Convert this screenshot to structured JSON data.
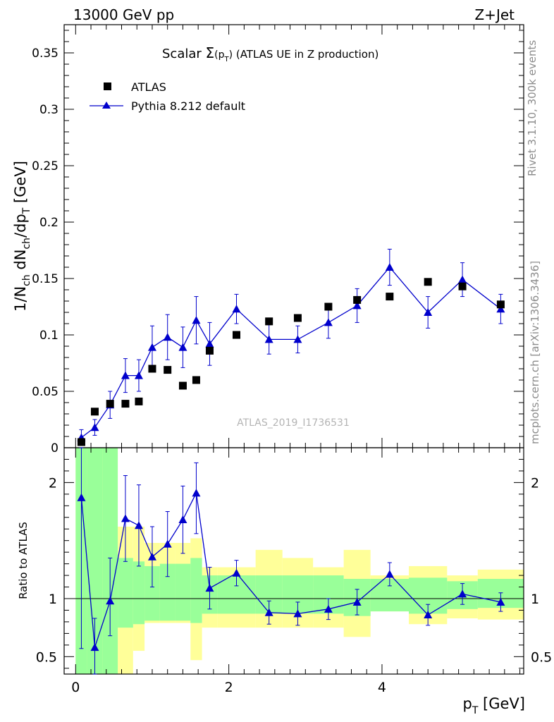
{
  "header": {
    "left": "13000 GeV pp",
    "right": "Z+Jet"
  },
  "side_texts": {
    "rivet": "Rivet 3.1.10,  300k events",
    "mcplots": "mcplots.cern.ch [arXiv:1306.3436]"
  },
  "watermark": "ATLAS_2019_I1736531",
  "colors": {
    "mc": "#0000cc",
    "data": "#000000",
    "band_inner": "#99ff99",
    "band_outer": "#ffff99"
  },
  "chart_data": [
    {
      "type": "scatter",
      "panel": "main",
      "title_prefix": "Scalar ",
      "title_sigma": "Σ",
      "title_p": "(p",
      "title_sub": "T",
      "title_close": ")",
      "title_suffix": " (ATLAS UE in Z production)",
      "ylabel": "1/N_ch dN_ch/dp_T [GeV]",
      "ylim": [
        0,
        0.375
      ],
      "yticks": [
        "0",
        "0.05",
        "0.1",
        "0.15",
        "0.2",
        "0.25",
        "0.3",
        "0.35"
      ],
      "ytick_values": [
        0,
        0.05,
        0.1,
        0.15,
        0.2,
        0.25,
        0.3,
        0.35
      ],
      "xlim": [
        -0.15,
        5.85
      ],
      "legend": {
        "data_label": "ATLAS",
        "mc_label": "Pythia 8.212 default",
        "placement": "top-left"
      },
      "x": [
        0.075,
        0.25,
        0.45,
        0.65,
        0.825,
        1.0,
        1.2,
        1.4,
        1.575,
        1.75,
        2.1,
        2.525,
        2.9,
        3.3,
        3.675,
        4.1,
        4.6,
        5.05,
        5.55
      ],
      "series": [
        {
          "name": "ATLAS",
          "values": [
            0.005,
            0.032,
            0.039,
            0.039,
            0.041,
            0.07,
            0.069,
            0.055,
            0.06,
            0.086,
            0.1,
            0.112,
            0.115,
            0.125,
            0.131,
            0.134,
            0.147,
            0.143,
            0.127
          ]
        },
        {
          "name": "Pythia 8.212 default",
          "values": [
            0.009,
            0.018,
            0.038,
            0.064,
            0.064,
            0.089,
            0.098,
            0.089,
            0.113,
            0.092,
            0.123,
            0.096,
            0.096,
            0.111,
            0.126,
            0.16,
            0.12,
            0.149,
            0.123
          ],
          "errors": [
            0.007,
            0.007,
            0.012,
            0.015,
            0.014,
            0.019,
            0.02,
            0.018,
            0.021,
            0.019,
            0.013,
            0.013,
            0.012,
            0.014,
            0.015,
            0.016,
            0.014,
            0.015,
            0.013
          ]
        }
      ]
    },
    {
      "type": "scatter",
      "panel": "ratio",
      "ylabel": "Ratio to ATLAS",
      "xlabel": "p_T [GeV]",
      "ylim": [
        0.35,
        2.3
      ],
      "yticks": [
        "0.5",
        "1",
        "2"
      ],
      "ytick_values": [
        0.5,
        1,
        2
      ],
      "xlim": [
        -0.15,
        5.85
      ],
      "xticks": [
        "0",
        "2",
        "4"
      ],
      "xtick_values": [
        0,
        2,
        4
      ],
      "bin_edges": [
        0.0,
        0.15,
        0.35,
        0.55,
        0.75,
        0.9,
        1.1,
        1.3,
        1.5,
        1.65,
        1.85,
        2.35,
        2.7,
        3.1,
        3.5,
        3.85,
        4.35,
        4.85,
        5.25,
        5.85
      ],
      "band_inner": {
        "lo": [
          0.35,
          0.35,
          0.35,
          0.75,
          0.78,
          0.81,
          0.81,
          0.81,
          0.79,
          0.87,
          0.87,
          0.87,
          0.87,
          0.87,
          0.85,
          0.89,
          0.87,
          0.91,
          0.92
        ],
        "hi": [
          2.3,
          2.3,
          2.3,
          1.35,
          1.32,
          1.28,
          1.3,
          1.3,
          1.35,
          1.2,
          1.2,
          1.2,
          1.2,
          1.2,
          1.17,
          1.17,
          1.18,
          1.15,
          1.17
        ]
      },
      "band_outer": {
        "lo": [
          0.35,
          0.35,
          0.35,
          0.35,
          0.55,
          0.79,
          0.79,
          0.79,
          0.47,
          0.75,
          0.75,
          0.75,
          0.75,
          0.75,
          0.67,
          0.89,
          0.78,
          0.83,
          0.82
        ],
        "hi": [
          2.3,
          2.3,
          2.3,
          1.62,
          1.62,
          1.48,
          1.48,
          1.48,
          1.52,
          1.27,
          1.27,
          1.42,
          1.35,
          1.27,
          1.42,
          1.2,
          1.28,
          1.2,
          1.25
        ]
      },
      "x": [
        0.075,
        0.25,
        0.45,
        0.65,
        0.825,
        1.0,
        1.2,
        1.4,
        1.575,
        1.75,
        2.1,
        2.525,
        2.9,
        3.3,
        3.675,
        4.1,
        4.6,
        5.05,
        5.55
      ],
      "series": [
        {
          "name": "Pythia 8.212 default / ATLAS",
          "values": [
            1.87,
            0.58,
            0.98,
            1.69,
            1.63,
            1.36,
            1.47,
            1.68,
            1.91,
            1.09,
            1.22,
            0.88,
            0.87,
            0.91,
            0.97,
            1.21,
            0.86,
            1.04,
            0.97
          ],
          "err_lo": [
            1.3,
            0.25,
            0.3,
            0.37,
            0.35,
            0.26,
            0.28,
            0.29,
            0.35,
            0.18,
            0.11,
            0.1,
            0.1,
            0.09,
            0.11,
            0.1,
            0.09,
            0.09,
            0.08
          ],
          "err_hi": [
            1.3,
            0.25,
            0.37,
            0.37,
            0.35,
            0.26,
            0.28,
            0.29,
            0.26,
            0.18,
            0.11,
            0.1,
            0.1,
            0.09,
            0.11,
            0.1,
            0.09,
            0.09,
            0.08
          ]
        }
      ]
    }
  ]
}
